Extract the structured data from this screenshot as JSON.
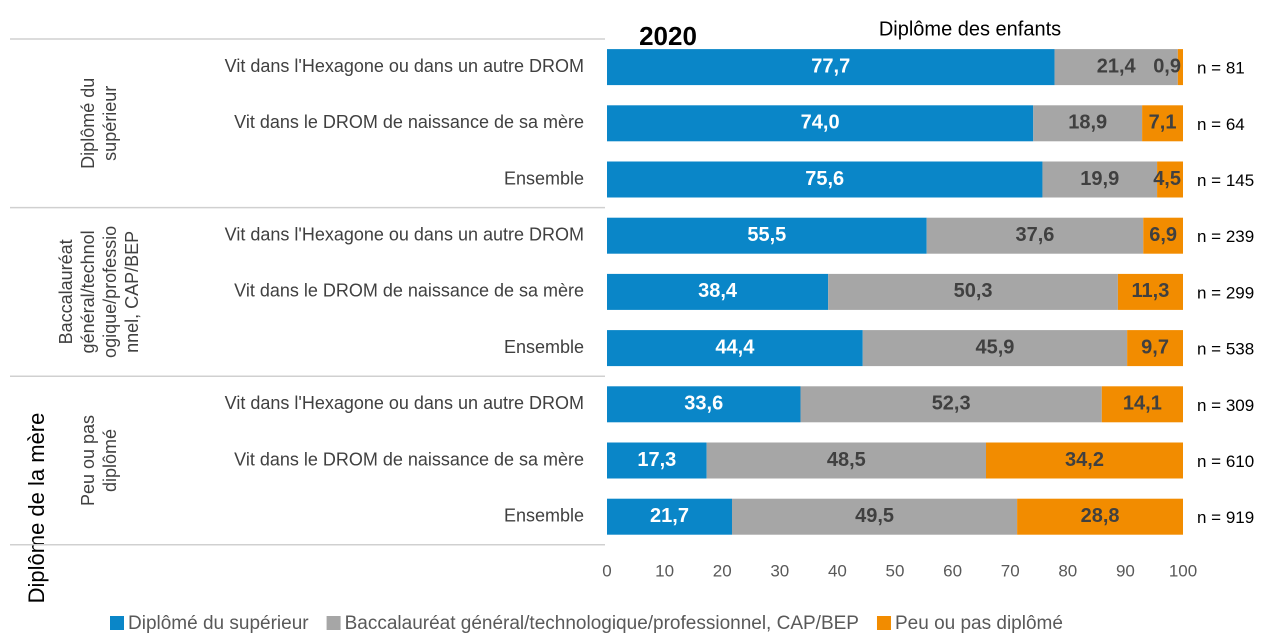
{
  "chart_data": {
    "type": "stacked_barh",
    "title": "2020",
    "series_title": "Diplôme des enfants",
    "y_label": "Diplôme de la mère",
    "groups": [
      {
        "lines": [
          "Diplômé du",
          "supérieur"
        ]
      },
      {
        "lines": [
          "Baccalauréat",
          "général/technol",
          "ogique/professio",
          "nnel, CAP/BEP"
        ]
      },
      {
        "lines": [
          "Peu ou pas",
          "diplômé"
        ]
      }
    ],
    "categories": [
      "Vit dans l'Hexagone ou dans un autre DROM",
      "Vit dans le DROM de naissance de sa mère",
      "Ensemble",
      "Vit dans l'Hexagone ou dans un autre DROM",
      "Vit dans le DROM de naissance de sa mère",
      "Ensemble",
      "Vit dans l'Hexagone ou dans un autre DROM",
      "Vit dans le DROM de naissance de sa mère",
      "Ensemble"
    ],
    "series": [
      {
        "name": "Diplômé du supérieur",
        "color": "#0a86c8",
        "values": [
          77.7,
          74.0,
          75.6,
          55.5,
          38.4,
          44.4,
          33.6,
          17.3,
          21.7
        ],
        "value_labels": [
          "77,7",
          "74,0",
          "75,6",
          "55,5",
          "38,4",
          "44,4",
          "33,6",
          "17,3",
          "21,7"
        ]
      },
      {
        "name": "Baccalauréat général/technologique/professionnel, CAP/BEP",
        "color": "#a6a6a6",
        "values": [
          21.4,
          18.9,
          19.9,
          37.6,
          50.3,
          45.9,
          52.3,
          48.5,
          49.5
        ],
        "value_labels": [
          "21,4",
          "18,9",
          "19,9",
          "37,6",
          "50,3",
          "45,9",
          "52,3",
          "48,5",
          "49,5"
        ]
      },
      {
        "name": "Peu ou pas diplômé",
        "color": "#f28c00",
        "values": [
          0.9,
          7.1,
          4.5,
          6.9,
          11.3,
          9.7,
          14.1,
          34.2,
          28.8
        ],
        "value_labels": [
          "0,9",
          "7,1",
          "4,5",
          "6,9",
          "11,3",
          "9,7",
          "14,1",
          "34,2",
          "28,8"
        ]
      }
    ],
    "annotations": [
      "n = 81",
      "n = 64",
      "n = 145",
      "n = 239",
      "n = 299",
      "n = 538",
      "n = 309",
      "n = 610",
      "n = 919"
    ],
    "xlim": [
      0,
      100
    ],
    "xticks": [
      0,
      10,
      20,
      30,
      40,
      50,
      60,
      70,
      80,
      90,
      100
    ],
    "legend": "bottom"
  }
}
